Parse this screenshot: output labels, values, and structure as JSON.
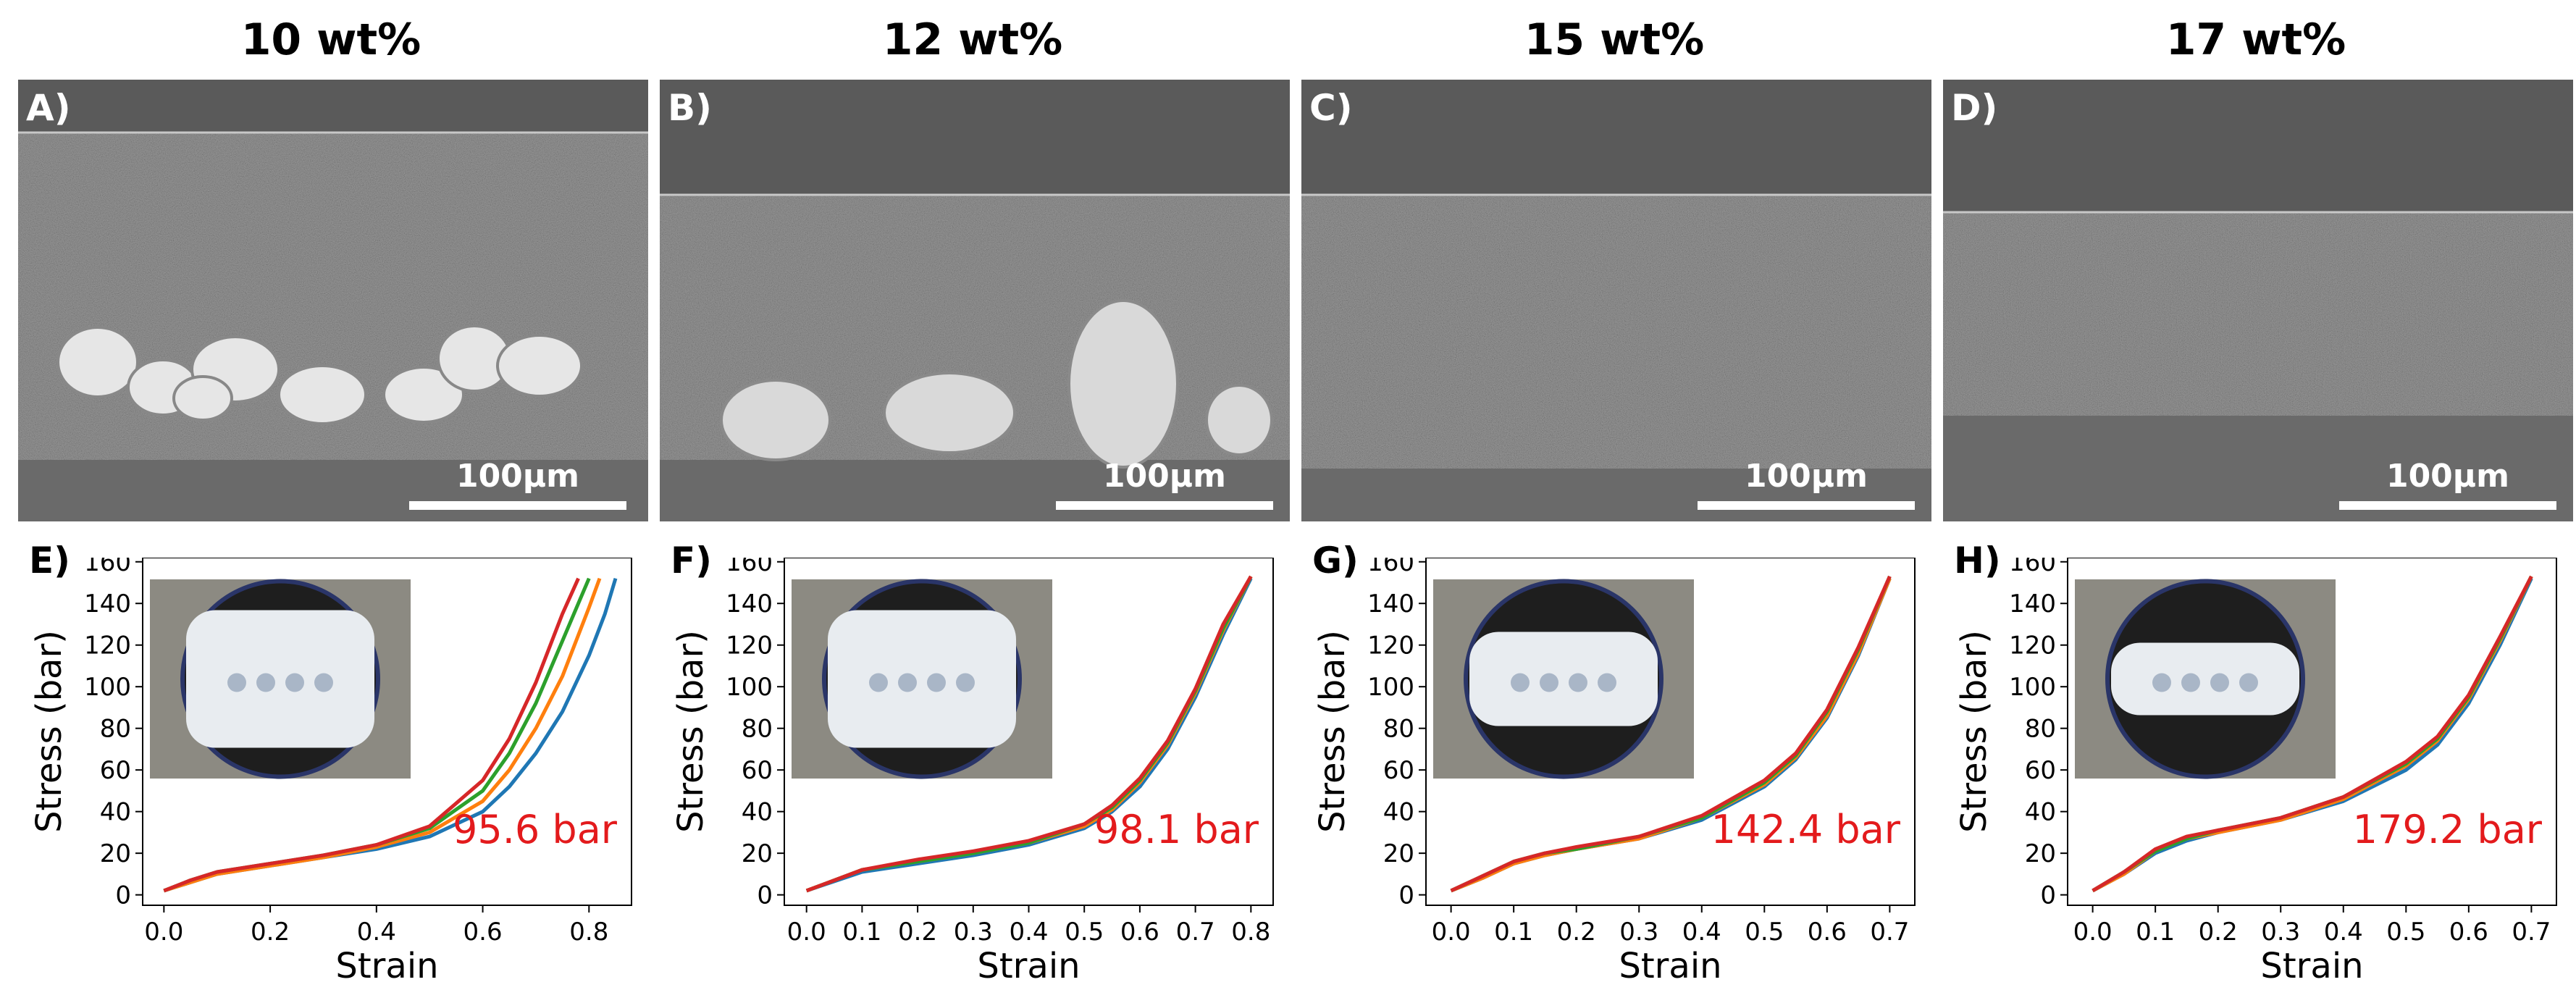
{
  "columns": [
    {
      "title": "10 wt%",
      "sem_label": "A)",
      "plot_label": "E)",
      "annotation": "95.6 bar",
      "scale_label": "100µm",
      "top_frac": 0.12,
      "bottom_frac": 0.86
    },
    {
      "title": "12 wt%",
      "sem_label": "B)",
      "plot_label": "F)",
      "annotation": "98.1 bar",
      "scale_label": "100µm",
      "top_frac": 0.26,
      "bottom_frac": 0.86
    },
    {
      "title": "15 wt%",
      "sem_label": "C)",
      "plot_label": "G)",
      "annotation": "142.4 bar",
      "scale_label": "100µm",
      "top_frac": 0.26,
      "bottom_frac": 0.88
    },
    {
      "title": "17 wt%",
      "sem_label": "D)",
      "plot_label": "H)",
      "annotation": "179.2 bar",
      "scale_label": "100µm",
      "top_frac": 0.3,
      "bottom_frac": 0.76
    }
  ],
  "colors": {
    "series": [
      "#1f77b4",
      "#ff7f0e",
      "#2ca02c",
      "#d62728"
    ],
    "annotation": "#e31a1c",
    "sem_background": "#5a5a5a",
    "sem_membrane": "#9a9a9a"
  },
  "chart_data": [
    {
      "type": "line",
      "xlabel": "Strain",
      "ylabel": "Stress (bar)",
      "xlim": [
        -0.04,
        0.88
      ],
      "ylim": [
        -5,
        162
      ],
      "xticks": [
        "0.0",
        "0.2",
        "0.4",
        "0.6",
        "0.8"
      ],
      "xtick_values": [
        0.0,
        0.2,
        0.4,
        0.6,
        0.8
      ],
      "yticks": [
        "0",
        "20",
        "40",
        "60",
        "80",
        "100",
        "120",
        "140",
        "160"
      ],
      "ytick_values": [
        0,
        20,
        40,
        60,
        80,
        100,
        120,
        140,
        160
      ],
      "annotation": "95.6 bar",
      "series": [
        {
          "x": [
            0.0,
            0.05,
            0.1,
            0.2,
            0.3,
            0.4,
            0.5,
            0.6,
            0.65,
            0.7,
            0.75,
            0.8,
            0.83,
            0.85
          ],
          "y": [
            2,
            6,
            10,
            14,
            18,
            22,
            28,
            40,
            52,
            68,
            88,
            115,
            135,
            152
          ]
        },
        {
          "x": [
            0.0,
            0.05,
            0.1,
            0.2,
            0.3,
            0.4,
            0.5,
            0.6,
            0.65,
            0.7,
            0.75,
            0.8,
            0.82
          ],
          "y": [
            2,
            6,
            10,
            14,
            18,
            23,
            30,
            45,
            60,
            80,
            105,
            138,
            152
          ]
        },
        {
          "x": [
            0.0,
            0.05,
            0.1,
            0.2,
            0.3,
            0.4,
            0.5,
            0.6,
            0.65,
            0.7,
            0.75,
            0.78,
            0.8
          ],
          "y": [
            2,
            7,
            11,
            15,
            19,
            24,
            32,
            50,
            68,
            92,
            122,
            140,
            152
          ]
        },
        {
          "x": [
            0.0,
            0.05,
            0.1,
            0.2,
            0.3,
            0.4,
            0.5,
            0.6,
            0.65,
            0.7,
            0.75,
            0.78
          ],
          "y": [
            2,
            7,
            11,
            15,
            19,
            24,
            33,
            55,
            75,
            102,
            135,
            152
          ]
        }
      ]
    },
    {
      "type": "line",
      "xlabel": "Strain",
      "ylabel": "Stress (bar)",
      "xlim": [
        -0.04,
        0.84
      ],
      "ylim": [
        -5,
        162
      ],
      "xticks": [
        "0.0",
        "0.1",
        "0.2",
        "0.3",
        "0.4",
        "0.5",
        "0.6",
        "0.7",
        "0.8"
      ],
      "xtick_values": [
        0.0,
        0.1,
        0.2,
        0.3,
        0.4,
        0.5,
        0.6,
        0.7,
        0.8
      ],
      "yticks": [
        "0",
        "20",
        "40",
        "60",
        "80",
        "100",
        "120",
        "140",
        "160"
      ],
      "ytick_values": [
        0,
        20,
        40,
        60,
        80,
        100,
        120,
        140,
        160
      ],
      "annotation": "98.1 bar",
      "series": [
        {
          "x": [
            0.0,
            0.1,
            0.2,
            0.3,
            0.4,
            0.5,
            0.55,
            0.6,
            0.65,
            0.7,
            0.75,
            0.8
          ],
          "y": [
            2,
            11,
            15,
            19,
            24,
            32,
            40,
            52,
            70,
            95,
            125,
            152
          ]
        },
        {
          "x": [
            0.0,
            0.1,
            0.2,
            0.3,
            0.4,
            0.5,
            0.55,
            0.6,
            0.65,
            0.7,
            0.75,
            0.8
          ],
          "y": [
            2,
            12,
            16,
            20,
            25,
            33,
            41,
            54,
            72,
            97,
            127,
            153
          ]
        },
        {
          "x": [
            0.0,
            0.1,
            0.2,
            0.3,
            0.4,
            0.5,
            0.55,
            0.6,
            0.65,
            0.7,
            0.75,
            0.8
          ],
          "y": [
            2,
            12,
            16,
            20,
            25,
            34,
            42,
            55,
            73,
            98,
            128,
            153
          ]
        },
        {
          "x": [
            0.0,
            0.1,
            0.2,
            0.3,
            0.4,
            0.5,
            0.55,
            0.6,
            0.65,
            0.7,
            0.75,
            0.8
          ],
          "y": [
            2,
            12,
            17,
            21,
            26,
            34,
            43,
            56,
            74,
            99,
            130,
            153
          ]
        }
      ]
    },
    {
      "type": "line",
      "xlabel": "Strain",
      "ylabel": "Stress (bar)",
      "xlim": [
        -0.04,
        0.74
      ],
      "ylim": [
        -5,
        162
      ],
      "xticks": [
        "0.0",
        "0.1",
        "0.2",
        "0.3",
        "0.4",
        "0.5",
        "0.6",
        "0.7"
      ],
      "xtick_values": [
        0.0,
        0.1,
        0.2,
        0.3,
        0.4,
        0.5,
        0.6,
        0.7
      ],
      "yticks": [
        "0",
        "20",
        "40",
        "60",
        "80",
        "100",
        "120",
        "140",
        "160"
      ],
      "ytick_values": [
        0,
        20,
        40,
        60,
        80,
        100,
        120,
        140,
        160
      ],
      "annotation": "142.4 bar",
      "series": [
        {
          "x": [
            0.0,
            0.05,
            0.1,
            0.15,
            0.2,
            0.3,
            0.4,
            0.5,
            0.55,
            0.6,
            0.65,
            0.7
          ],
          "y": [
            2,
            8,
            15,
            19,
            22,
            27,
            36,
            52,
            65,
            85,
            115,
            152
          ]
        },
        {
          "x": [
            0.0,
            0.05,
            0.1,
            0.15,
            0.2,
            0.3,
            0.4,
            0.5,
            0.55,
            0.6,
            0.65,
            0.7
          ],
          "y": [
            2,
            8,
            15,
            19,
            22,
            27,
            37,
            53,
            66,
            86,
            116,
            152
          ]
        },
        {
          "x": [
            0.0,
            0.05,
            0.1,
            0.15,
            0.2,
            0.3,
            0.4,
            0.5,
            0.55,
            0.6,
            0.65,
            0.7
          ],
          "y": [
            2,
            9,
            16,
            20,
            22,
            28,
            37,
            54,
            67,
            88,
            118,
            153
          ]
        },
        {
          "x": [
            0.0,
            0.05,
            0.1,
            0.15,
            0.2,
            0.3,
            0.4,
            0.5,
            0.55,
            0.6,
            0.65,
            0.7
          ],
          "y": [
            2,
            9,
            16,
            20,
            23,
            28,
            38,
            55,
            68,
            89,
            119,
            153
          ]
        }
      ]
    },
    {
      "type": "line",
      "xlabel": "Strain",
      "ylabel": "Stress (bar)",
      "xlim": [
        -0.04,
        0.74
      ],
      "ylim": [
        -5,
        162
      ],
      "xticks": [
        "0.0",
        "0.1",
        "0.2",
        "0.3",
        "0.4",
        "0.5",
        "0.6",
        "0.7"
      ],
      "xtick_values": [
        0.0,
        0.1,
        0.2,
        0.3,
        0.4,
        0.5,
        0.6,
        0.7
      ],
      "yticks": [
        "0",
        "20",
        "40",
        "60",
        "80",
        "100",
        "120",
        "140",
        "160"
      ],
      "ytick_values": [
        0,
        20,
        40,
        60,
        80,
        100,
        120,
        140,
        160
      ],
      "annotation": "179.2 bar",
      "series": [
        {
          "x": [
            0.0,
            0.05,
            0.1,
            0.15,
            0.2,
            0.3,
            0.4,
            0.5,
            0.55,
            0.6,
            0.65,
            0.7
          ],
          "y": [
            2,
            10,
            20,
            26,
            30,
            36,
            45,
            60,
            72,
            92,
            120,
            152
          ]
        },
        {
          "x": [
            0.0,
            0.05,
            0.1,
            0.15,
            0.2,
            0.3,
            0.4,
            0.5,
            0.55,
            0.6,
            0.65,
            0.7
          ],
          "y": [
            2,
            10,
            21,
            27,
            30,
            36,
            46,
            62,
            74,
            94,
            122,
            153
          ]
        },
        {
          "x": [
            0.0,
            0.05,
            0.1,
            0.15,
            0.2,
            0.3,
            0.4,
            0.5,
            0.55,
            0.6,
            0.65,
            0.7
          ],
          "y": [
            2,
            11,
            21,
            27,
            31,
            37,
            47,
            63,
            75,
            95,
            123,
            153
          ]
        },
        {
          "x": [
            0.0,
            0.05,
            0.1,
            0.15,
            0.2,
            0.3,
            0.4,
            0.5,
            0.55,
            0.6,
            0.65,
            0.7
          ],
          "y": [
            2,
            11,
            22,
            28,
            31,
            37,
            47,
            64,
            76,
            96,
            124,
            153
          ]
        }
      ]
    }
  ]
}
